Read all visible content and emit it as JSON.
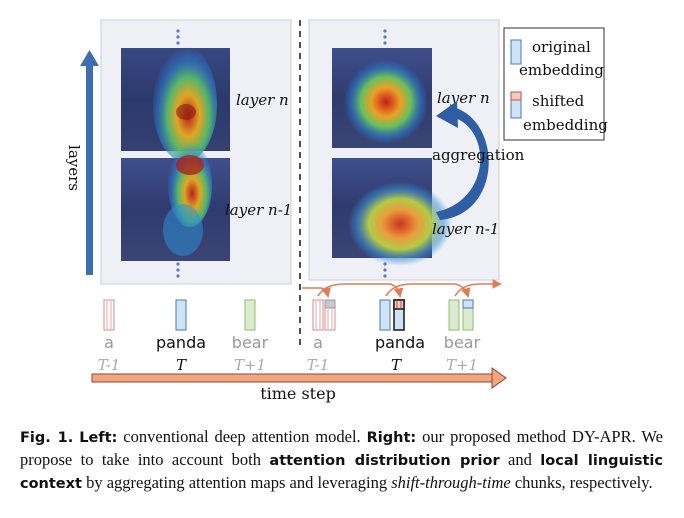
{
  "figure": {
    "layers_axis_label": "layers",
    "left_panel": {
      "top_map_label": "layer n",
      "bottom_map_label": "layer n-1"
    },
    "right_panel": {
      "top_map_label": "layer n",
      "bottom_map_label": "layer n-1",
      "arrow_label": "aggregation"
    },
    "legend": {
      "original_line1": "original",
      "original_line2": "embedding",
      "shifted_line1": "shifted",
      "shifted_line2": "embedding"
    },
    "tokens_left": [
      {
        "word": "a",
        "step": "T-1"
      },
      {
        "word": "panda",
        "step": "T"
      },
      {
        "word": "bear",
        "step": "T+1"
      }
    ],
    "tokens_right": [
      {
        "word": "a",
        "step": "T-1"
      },
      {
        "word": "panda",
        "step": "T"
      },
      {
        "word": "bear",
        "step": "T+1"
      }
    ],
    "time_axis_label": "time step",
    "colors": {
      "panel_bg": "#eef0f5",
      "layers_arrow": "#3d6fb0",
      "time_arrow": "#f0a582",
      "aggregation_arrow": "#2f5ea4",
      "token_a": "#d98a8a",
      "token_panda": "#8ab2e0",
      "token_bear": "#a9cf8c"
    }
  },
  "caption": {
    "label": "Fig. 1.",
    "left_label": "Left:",
    "left_text": " conventional deep attention model. ",
    "right_label": "Right:",
    "right_text1": " our proposed method DY-APR. We propose to take into account both ",
    "bold1": "attention distribution prior",
    "text2": " and ",
    "bold2": "local linguistic context",
    "text3": " by aggregating attention maps and leveraging ",
    "italic1": "shift-through-time",
    "text4": " chunks, respectively."
  }
}
